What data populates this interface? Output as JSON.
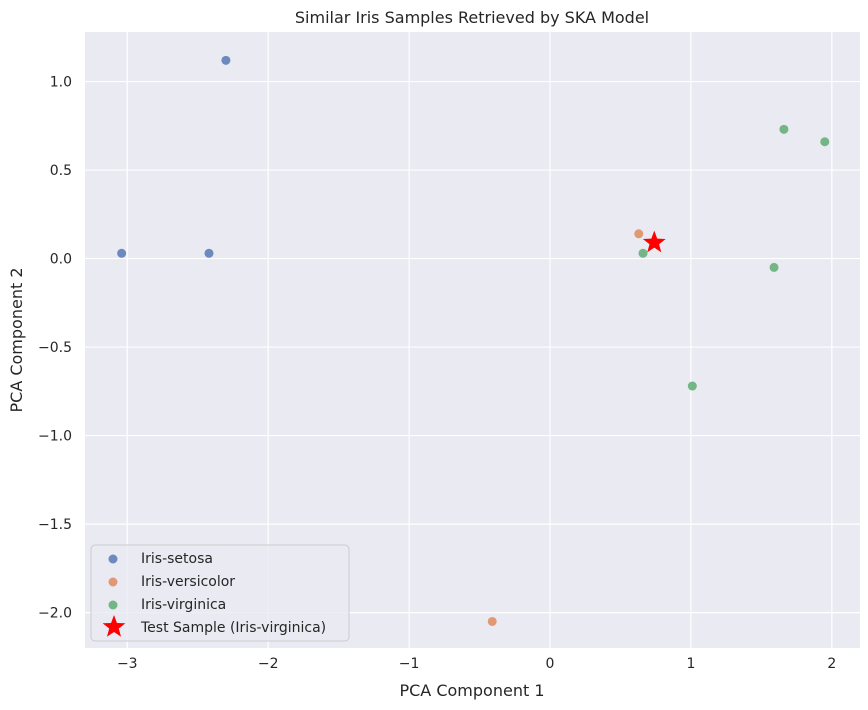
{
  "chart_data": {
    "type": "scatter",
    "title": "Similar Iris Samples Retrieved by SKA Model",
    "xlabel": "PCA Component 1",
    "ylabel": "PCA Component 2",
    "xlim": [
      -3.3,
      2.2
    ],
    "ylim": [
      -2.2,
      1.28
    ],
    "xticks": [
      -3,
      -2,
      -1,
      0,
      1,
      2
    ],
    "xtick_labels": [
      "−3",
      "−2",
      "−1",
      "0",
      "1",
      "2"
    ],
    "yticks": [
      -2.0,
      -1.5,
      -1.0,
      -0.5,
      0.0,
      0.5,
      1.0
    ],
    "ytick_labels": [
      "−2.0",
      "−1.5",
      "−1.0",
      "−0.5",
      "0.0",
      "0.5",
      "1.0"
    ],
    "grid": true,
    "legend_position": "lower-left",
    "series": [
      {
        "name": "Iris-setosa",
        "marker": "circle",
        "color": "#4c72b0",
        "points": [
          [
            -2.3,
            1.12
          ],
          [
            -3.04,
            0.03
          ],
          [
            -2.42,
            0.03
          ]
        ]
      },
      {
        "name": "Iris-versicolor",
        "marker": "circle",
        "color": "#dd8452",
        "points": [
          [
            0.63,
            0.14
          ],
          [
            -0.41,
            -2.05
          ]
        ]
      },
      {
        "name": "Iris-virginica",
        "marker": "circle",
        "color": "#55a868",
        "points": [
          [
            1.66,
            0.73
          ],
          [
            1.95,
            0.66
          ],
          [
            0.66,
            0.03
          ],
          [
            1.59,
            -0.05
          ],
          [
            1.01,
            -0.72
          ]
        ]
      },
      {
        "name": "Test Sample (Iris-virginica)",
        "marker": "star",
        "color": "#ff0000",
        "points": [
          [
            0.74,
            0.09
          ]
        ]
      }
    ]
  }
}
